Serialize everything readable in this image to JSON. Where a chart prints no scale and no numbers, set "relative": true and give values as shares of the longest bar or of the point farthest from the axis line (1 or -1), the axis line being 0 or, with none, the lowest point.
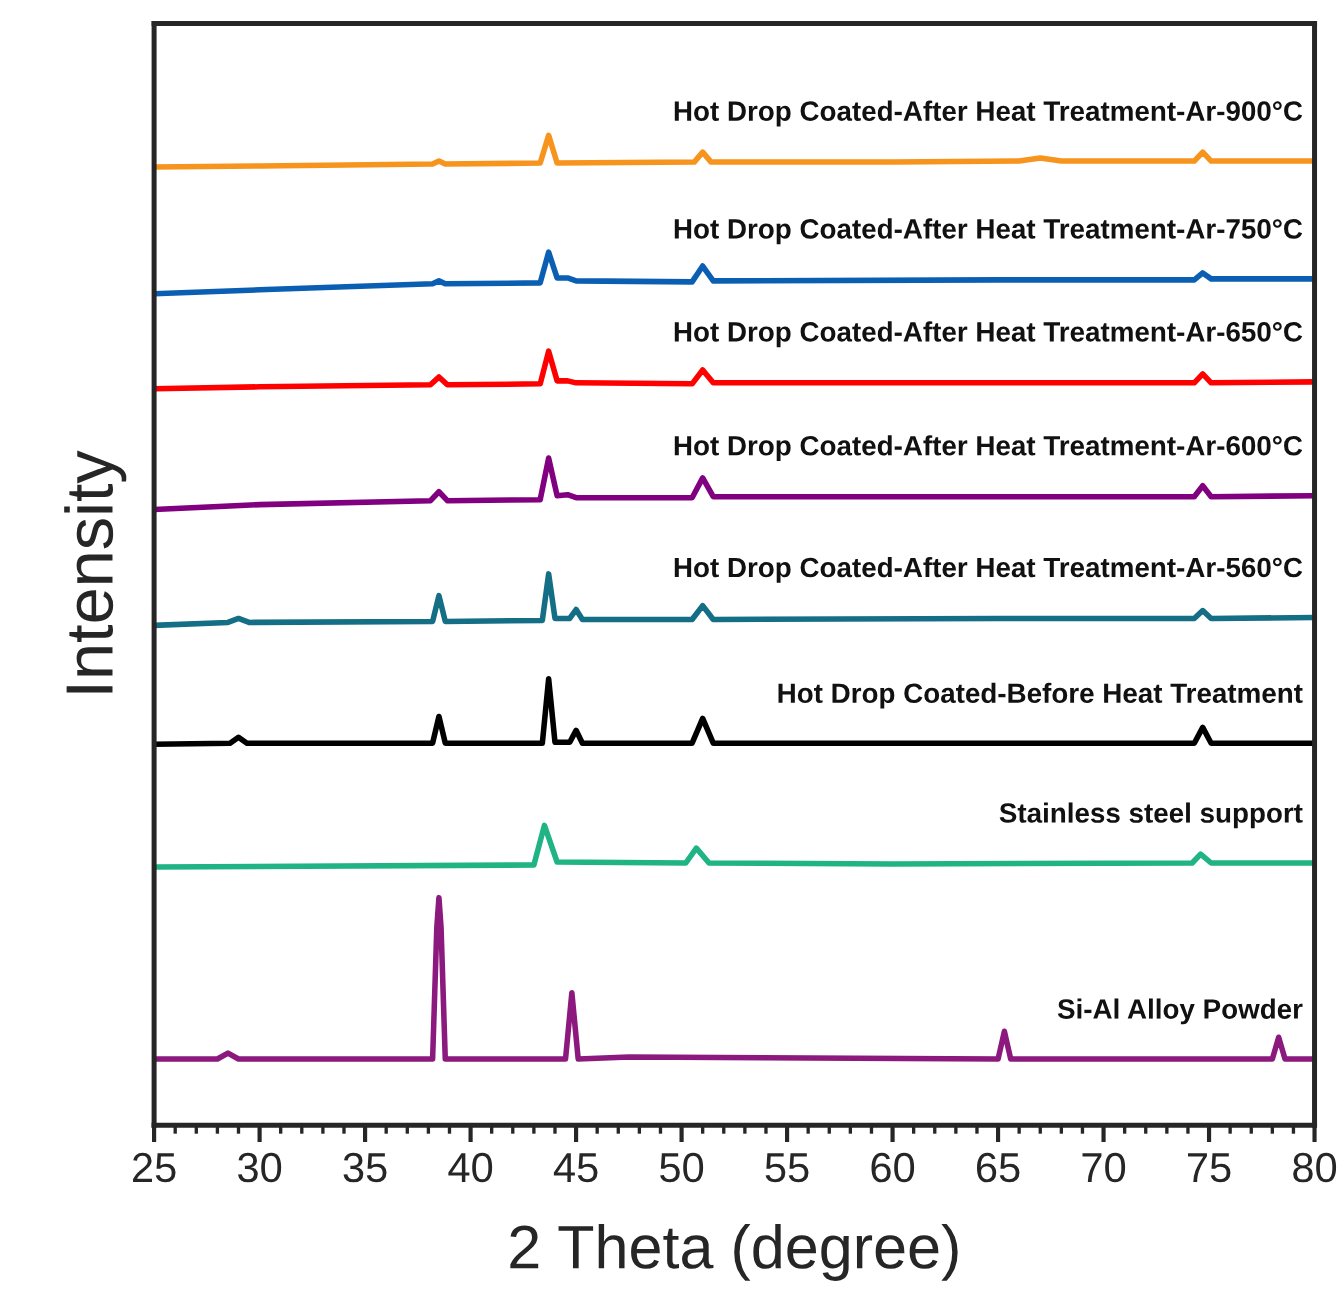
{
  "chart_data": {
    "type": "line",
    "relative": true,
    "xlabel": "2 Theta (degree)",
    "ylabel": "Intensity",
    "xlim": [
      25,
      80
    ],
    "xticks": [
      25,
      30,
      35,
      40,
      45,
      50,
      55,
      60,
      65,
      70,
      75,
      80
    ],
    "grid": false,
    "legend": false,
    "marker": "none",
    "line_style": "solid",
    "tick_labels": "x",
    "series": [
      {
        "name": "Hot Drop Coated-After Heat Treatment-Ar-900°C",
        "color": "#f7941d",
        "x": [
          25,
          30,
          38.2,
          38.5,
          38.8,
          43.3,
          43.7,
          44.1,
          50.6,
          51,
          51.4,
          60,
          66,
          67,
          68,
          74.3,
          74.7,
          75.1,
          80
        ],
        "values": [
          0.968,
          0.969,
          0.971,
          0.974,
          0.971,
          0.972,
          1.0,
          0.972,
          0.973,
          0.983,
          0.973,
          0.973,
          0.974,
          0.977,
          0.974,
          0.974,
          0.983,
          0.974,
          0.974
        ]
      },
      {
        "name": "Hot Drop Coated-After Heat Treatment-Ar-750°C",
        "color": "#0b5fb3",
        "x": [
          25,
          30,
          38.2,
          38.5,
          38.8,
          43.3,
          43.7,
          44.1,
          44.6,
          45,
          50.5,
          51,
          51.5,
          65,
          74.3,
          74.7,
          75.1,
          80
        ],
        "values": [
          0.84,
          0.844,
          0.85,
          0.853,
          0.85,
          0.851,
          0.882,
          0.856,
          0.856,
          0.853,
          0.852,
          0.868,
          0.853,
          0.854,
          0.854,
          0.861,
          0.855,
          0.855
        ]
      },
      {
        "name": "Hot Drop Coated-After Heat Treatment-Ar-650°C",
        "color": "#ff0000",
        "x": [
          25,
          30,
          38.1,
          38.5,
          38.9,
          43.3,
          43.7,
          44.1,
          44.6,
          45,
          50.5,
          51,
          51.5,
          74.3,
          74.7,
          75.1,
          80
        ],
        "values": [
          0.744,
          0.746,
          0.748,
          0.756,
          0.748,
          0.749,
          0.782,
          0.752,
          0.752,
          0.75,
          0.749,
          0.763,
          0.75,
          0.75,
          0.759,
          0.75,
          0.751
        ]
      },
      {
        "name": "Hot Drop Coated-After Heat Treatment-Ar-600°C",
        "color": "#800080",
        "x": [
          25,
          30,
          38.1,
          38.5,
          38.9,
          43.3,
          43.7,
          44.1,
          44.6,
          45,
          50.5,
          51,
          51.5,
          74.3,
          74.7,
          75.1,
          80
        ],
        "values": [
          0.622,
          0.627,
          0.631,
          0.64,
          0.631,
          0.632,
          0.674,
          0.636,
          0.637,
          0.634,
          0.634,
          0.654,
          0.635,
          0.635,
          0.646,
          0.635,
          0.636
        ]
      },
      {
        "name": "Hot Drop Coated-After Heat Treatment-Ar-560°C",
        "color": "#146e85",
        "x": [
          25,
          28.5,
          29,
          29.5,
          38.2,
          38.5,
          38.8,
          43.4,
          43.7,
          44,
          44.7,
          45,
          45.3,
          50.5,
          51,
          51.5,
          65,
          74.3,
          74.7,
          75.1,
          80
        ],
        "values": [
          0.505,
          0.508,
          0.512,
          0.508,
          0.509,
          0.535,
          0.509,
          0.51,
          0.557,
          0.512,
          0.512,
          0.521,
          0.511,
          0.511,
          0.525,
          0.511,
          0.512,
          0.512,
          0.52,
          0.512,
          0.513
        ]
      },
      {
        "name": "Hot Drop Coated-Before Heat Treatment",
        "color": "#000000",
        "x": [
          25,
          28.6,
          29,
          29.4,
          38.2,
          38.5,
          38.8,
          43.4,
          43.7,
          44,
          44.7,
          45,
          45.3,
          50.5,
          51,
          51.5,
          65,
          74.3,
          74.7,
          75.1,
          80
        ],
        "values": [
          0.385,
          0.386,
          0.392,
          0.386,
          0.386,
          0.413,
          0.386,
          0.386,
          0.451,
          0.387,
          0.387,
          0.399,
          0.386,
          0.386,
          0.411,
          0.386,
          0.386,
          0.386,
          0.402,
          0.386,
          0.386
        ]
      },
      {
        "name": "Stainless steel support",
        "color": "#20b384",
        "x": [
          25,
          43,
          43.5,
          44.1,
          50.2,
          50.7,
          51.3,
          60,
          74.2,
          74.6,
          75.1,
          80
        ],
        "values": [
          0.261,
          0.263,
          0.303,
          0.266,
          0.265,
          0.28,
          0.265,
          0.264,
          0.265,
          0.274,
          0.265,
          0.265
        ]
      },
      {
        "name": "Si-Al Alloy Powder",
        "color": "#8c1a7e",
        "x": [
          25,
          28,
          28.5,
          29,
          38.2,
          38.4,
          38.5,
          38.6,
          38.8,
          44.5,
          44.8,
          45.1,
          47.5,
          65,
          65.3,
          65.6,
          78,
          78.3,
          78.6,
          80
        ],
        "values": [
          0.067,
          0.067,
          0.073,
          0.067,
          0.067,
          0.2,
          0.23,
          0.2,
          0.067,
          0.067,
          0.134,
          0.067,
          0.069,
          0.067,
          0.095,
          0.067,
          0.067,
          0.089,
          0.067,
          0.067
        ]
      }
    ]
  }
}
